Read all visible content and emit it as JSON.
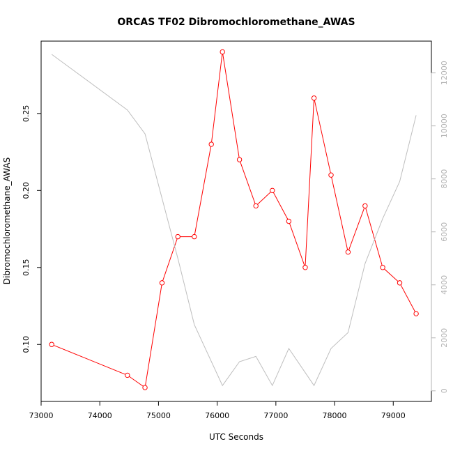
{
  "chart_data": {
    "type": "line",
    "title": "ORCAS TF02 Dibromochloromethane_AWAS",
    "xlabel": "UTC Seconds",
    "ylabel": "Dibromochloromethane_AWAS",
    "y2label": "",
    "xlim": [
      73000,
      79650
    ],
    "ylim": [
      0.063,
      0.297
    ],
    "y2lim": [
      -400,
      13200
    ],
    "x_ticks": [
      73000,
      74000,
      75000,
      76000,
      77000,
      78000,
      79000
    ],
    "x_tick_labels": [
      "73000",
      "74000",
      "75000",
      "76000",
      "77000",
      "78000",
      "79000"
    ],
    "y_ticks": [
      0.1,
      0.15,
      0.2,
      0.25
    ],
    "y_tick_labels": [
      "0.10",
      "0.15",
      "0.20",
      "0.25"
    ],
    "y2_ticks": [
      0,
      2000,
      4000,
      6000,
      8000,
      10000,
      12000
    ],
    "y2_tick_labels": [
      "0",
      "2000",
      "4000",
      "6000",
      "8000",
      "10000",
      "12000"
    ],
    "grid": false,
    "series": [
      {
        "axis": "left",
        "color": "#ff0000",
        "marker": "open-circle",
        "x": [
          73180,
          74470,
          74770,
          75060,
          75330,
          75610,
          75900,
          76090,
          76380,
          76660,
          76940,
          77220,
          77500,
          77650,
          77940,
          78230,
          78520,
          78820,
          79110,
          79390
        ],
        "values": [
          0.1,
          0.08,
          0.072,
          0.14,
          0.17,
          0.17,
          0.23,
          0.29,
          0.22,
          0.19,
          0.2,
          0.18,
          0.15,
          0.26,
          0.21,
          0.16,
          0.19,
          0.15,
          0.14,
          0.12
        ]
      },
      {
        "axis": "right",
        "color": "#bebebe",
        "marker": "none",
        "x": [
          73180,
          74470,
          74770,
          75330,
          75610,
          76090,
          76380,
          76660,
          76940,
          77220,
          77650,
          77940,
          78230,
          78520,
          78820,
          79110,
          79390
        ],
        "values": [
          12700,
          10600,
          9700,
          5000,
          2500,
          200,
          1100,
          1300,
          200,
          1600,
          200,
          1600,
          2200,
          4800,
          6500,
          7900,
          10400
        ]
      }
    ]
  }
}
